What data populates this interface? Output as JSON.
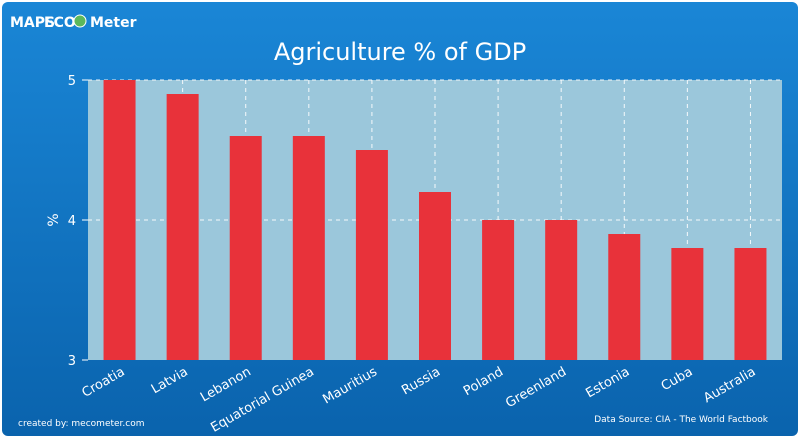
{
  "brand": {
    "logo_text_1": "MAPS",
    "logo_text_2": "ECO",
    "logo_text_3": "Meter"
  },
  "footer": {
    "credit": "created by: mecometer.com",
    "source": "Data Source: CIA - The World Factbook"
  },
  "colors": {
    "outer_bg": "#0d72c4",
    "plot_bg": "#9bc7db",
    "bar": "#e8323a",
    "grid": "#ffffff"
  },
  "chart_data": {
    "type": "bar",
    "title": "Agriculture % of GDP",
    "xlabel": "",
    "ylabel": "%",
    "ylim": [
      3,
      5
    ],
    "yticks": [
      3,
      4,
      5
    ],
    "grid": true,
    "categories": [
      "Croatia",
      "Latvia",
      "Lebanon",
      "Equatorial Guinea",
      "Mauritius",
      "Russia",
      "Poland",
      "Greenland",
      "Estonia",
      "Cuba",
      "Australia"
    ],
    "values": [
      5.0,
      4.9,
      4.6,
      4.6,
      4.5,
      4.2,
      4.0,
      4.0,
      3.9,
      3.8,
      3.8
    ]
  }
}
